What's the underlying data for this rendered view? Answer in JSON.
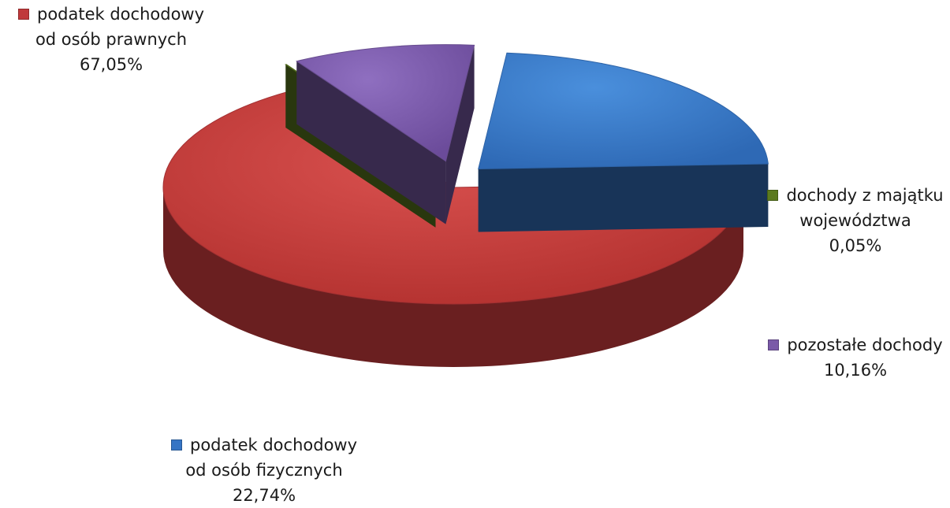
{
  "chart_data": {
    "type": "pie",
    "title": "",
    "series": [
      {
        "values": [
          67.05,
          0.05,
          10.16,
          22.74
        ]
      }
    ],
    "slices": [
      {
        "id": "prawne",
        "label_line1": "podatek dochodowy",
        "label_line2": "od osób prawnych",
        "value_label": "67,05%",
        "value": 67.05,
        "color": "#c0393b",
        "exploded": false
      },
      {
        "id": "majatek",
        "label_line1": "dochody z majątku",
        "label_line2": "województwa",
        "value_label": "0,05%",
        "value": 0.05,
        "color": "#5c7a1e",
        "exploded": true
      },
      {
        "id": "pozostale",
        "label_line1": "pozostałe dochody",
        "label_line2": "",
        "value_label": "10,16%",
        "value": 10.16,
        "color": "#7a5aa8",
        "exploded": true
      },
      {
        "id": "fizyczne",
        "label_line1": "podatek dochodowy",
        "label_line2": "od osób fizycznych",
        "value_label": "22,74%",
        "value": 22.74,
        "color": "#3574c4",
        "exploded": true
      }
    ],
    "style": "3d-exploded"
  }
}
